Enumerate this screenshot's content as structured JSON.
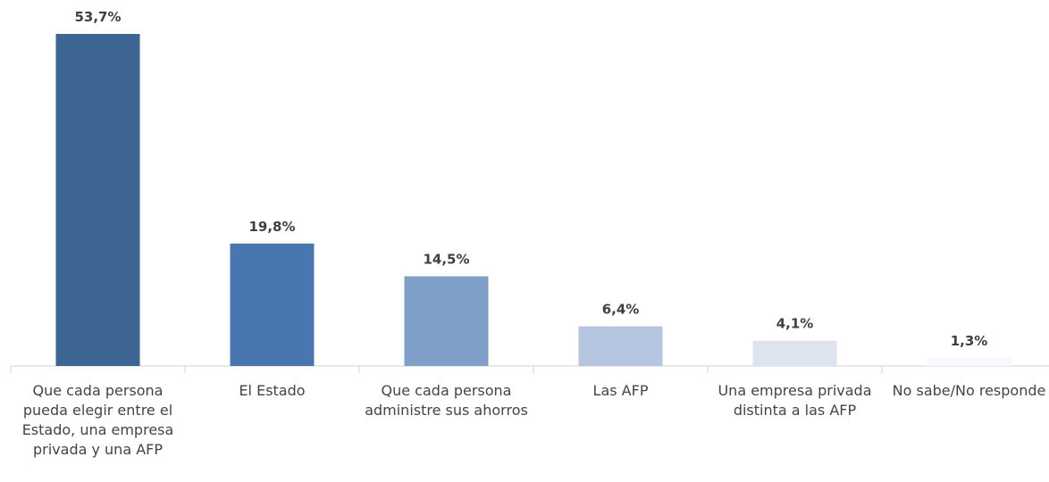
{
  "chart_data": {
    "type": "bar",
    "categories": [
      "Que cada persona pueda elegir entre el Estado, una empresa privada y una AFP",
      "El Estado",
      "Que cada persona administre sus ahorros",
      "Las AFP",
      "Una empresa privada distinta a las AFP",
      "No sabe/No responde"
    ],
    "values": [
      53.7,
      19.8,
      14.5,
      6.4,
      4.1,
      1.3
    ],
    "value_labels": [
      "53,7%",
      "19,8%",
      "14,5%",
      "6,4%",
      "4,1%",
      "1,3%"
    ],
    "colors": [
      "#3d6594",
      "#4877b0",
      "#7f9ec8",
      "#b5c5e0",
      "#dde4f0",
      "#f7f8fc"
    ]
  }
}
